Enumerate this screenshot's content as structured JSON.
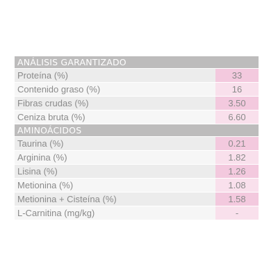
{
  "analysis": {
    "header": "ANÁLISIS GARANTIZADO",
    "rows": [
      {
        "label": "Proteína (%)",
        "value": "33"
      },
      {
        "label": "Contenido graso (%)",
        "value": "16"
      },
      {
        "label": "Fibras crudas (%)",
        "value": "3.50"
      },
      {
        "label": "Ceniza bruta (%)",
        "value": "6.60"
      }
    ]
  },
  "amino": {
    "header": "AMINOÁCIDOS",
    "rows": [
      {
        "label": "Taurina (%)",
        "value": "0.21"
      },
      {
        "label": "Arginina (%)",
        "value": "1.82"
      },
      {
        "label": "Lisina (%)",
        "value": "1.26"
      },
      {
        "label": "Metionina (%)",
        "value": "1.08"
      },
      {
        "label": "Metionina + Cisteína (%)",
        "value": "1.58"
      },
      {
        "label": "L-Carnitina (mg/kg)",
        "value": "-"
      }
    ]
  }
}
